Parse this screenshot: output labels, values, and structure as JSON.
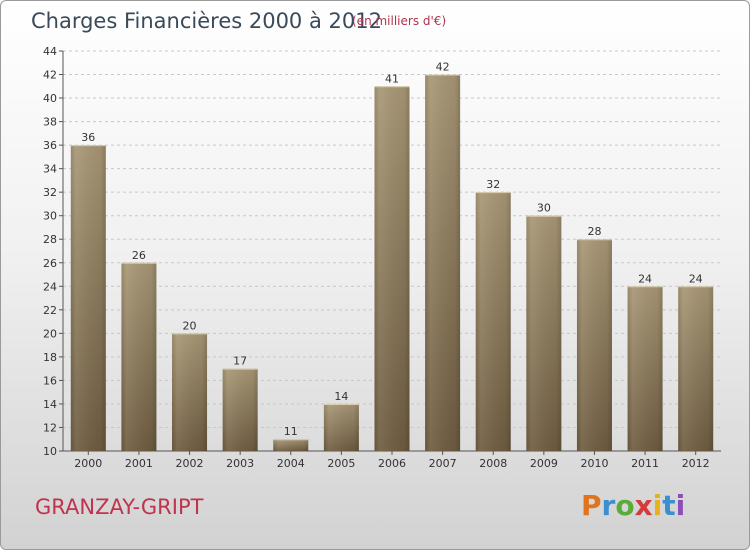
{
  "header": {
    "title": "Charges Financières 2000 à 2012",
    "unit": "(en milliers d'€)"
  },
  "footer": {
    "commune": "GRANZAY-GRIPT",
    "logo": [
      "P",
      "r",
      "o",
      "x",
      "i",
      "t",
      "i"
    ]
  },
  "colors": {
    "bar_light": "#a89776",
    "bar_dark": "#6e5c40",
    "title": "#3a4a5a",
    "commune": "#c0334d"
  },
  "chart_data": {
    "type": "bar",
    "title": "Charges Financières 2000 à 2012",
    "subtitle": "(en milliers d'€)",
    "categories": [
      "2000",
      "2001",
      "2002",
      "2003",
      "2004",
      "2005",
      "2006",
      "2007",
      "2008",
      "2009",
      "2010",
      "2011",
      "2012"
    ],
    "values": [
      36,
      26,
      20,
      17,
      11,
      14,
      41,
      42,
      32,
      30,
      28,
      24,
      24
    ],
    "ylim": [
      10,
      44
    ],
    "yticks": [
      10,
      12,
      14,
      16,
      18,
      20,
      22,
      24,
      26,
      28,
      30,
      32,
      34,
      36,
      38,
      40,
      42,
      44
    ],
    "grid": true,
    "data_labels": true
  }
}
